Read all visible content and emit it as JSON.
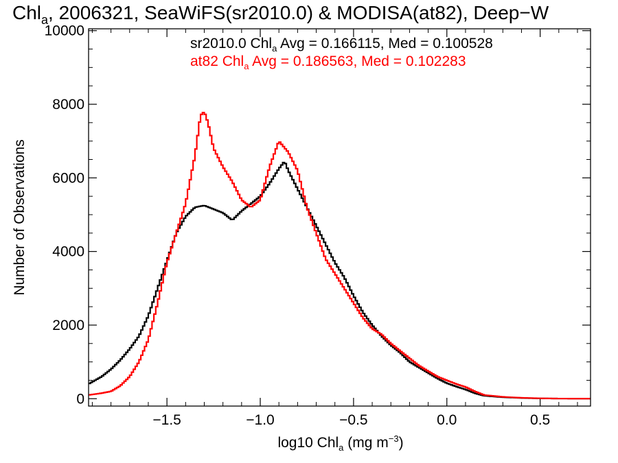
{
  "chart_data": {
    "type": "line",
    "step": true,
    "title": {
      "prefix": "Chl",
      "sub": "a",
      "rest": ", 2006321, SeaWiFS(sr2010.0) & MODISA(at82), Deep−W"
    },
    "xlabel": {
      "prefix": "log10 Chl",
      "sub": "a",
      "middle": " (mg m",
      "sup": "−3",
      "suffix": ")"
    },
    "ylabel": "Number of Observations",
    "xlim": [
      -1.92,
      0.77
    ],
    "ylim": [
      -200,
      10050
    ],
    "x_ticks": [
      -1.5,
      -1.0,
      -0.5,
      0.0,
      0.5
    ],
    "x_tick_labels": [
      "−1.5",
      "−1.0",
      "−0.5",
      "0.0",
      "0.5"
    ],
    "y_ticks": [
      0,
      2000,
      4000,
      6000,
      8000,
      10000
    ],
    "y_tick_labels": [
      "0",
      "2000",
      "4000",
      "6000",
      "8000",
      "10000"
    ],
    "annotations": [
      {
        "prefix": "sr2010.0 Chl",
        "sub": "a",
        "suffix": " Avg = 0.166115, Med = 0.100528",
        "color": "#000000"
      },
      {
        "prefix": "at82 Chl",
        "sub": "a",
        "suffix": " Avg = 0.186563, Med = 0.102283",
        "color": "#ff0000"
      }
    ],
    "series": [
      {
        "color": "#000000",
        "x": [
          -1.92,
          -1.85,
          -1.8,
          -1.75,
          -1.7,
          -1.65,
          -1.6,
          -1.55,
          -1.5,
          -1.45,
          -1.4,
          -1.35,
          -1.3,
          -1.25,
          -1.2,
          -1.15,
          -1.1,
          -1.05,
          -1.0,
          -0.95,
          -0.9,
          -0.87,
          -0.85,
          -0.8,
          -0.75,
          -0.7,
          -0.65,
          -0.6,
          -0.55,
          -0.5,
          -0.45,
          -0.4,
          -0.35,
          -0.3,
          -0.25,
          -0.2,
          -0.15,
          -0.1,
          -0.05,
          0.0,
          0.05,
          0.1,
          0.15,
          0.2,
          0.3,
          0.4,
          0.5,
          0.6,
          0.77
        ],
        "y": [
          400,
          600,
          800,
          1050,
          1350,
          1700,
          2250,
          3000,
          3750,
          4500,
          4950,
          5200,
          5250,
          5150,
          5050,
          4850,
          5100,
          5300,
          5500,
          5850,
          6250,
          6450,
          6200,
          5700,
          5200,
          4700,
          4200,
          3700,
          3300,
          2800,
          2350,
          2000,
          1700,
          1450,
          1250,
          1000,
          850,
          700,
          550,
          420,
          330,
          250,
          150,
          80,
          40,
          20,
          8,
          4,
          2
        ]
      },
      {
        "color": "#ff0000",
        "x": [
          -1.92,
          -1.85,
          -1.8,
          -1.75,
          -1.7,
          -1.65,
          -1.6,
          -1.55,
          -1.5,
          -1.45,
          -1.4,
          -1.35,
          -1.32,
          -1.3,
          -1.28,
          -1.25,
          -1.2,
          -1.15,
          -1.1,
          -1.05,
          -1.0,
          -0.95,
          -0.9,
          -0.85,
          -0.8,
          -0.75,
          -0.7,
          -0.65,
          -0.6,
          -0.55,
          -0.5,
          -0.45,
          -0.4,
          -0.35,
          -0.3,
          -0.25,
          -0.2,
          -0.15,
          -0.1,
          -0.05,
          0.0,
          0.05,
          0.1,
          0.15,
          0.2,
          0.3,
          0.4,
          0.5,
          0.6,
          0.77
        ],
        "y": [
          100,
          150,
          200,
          350,
          600,
          1000,
          1600,
          2600,
          3700,
          4500,
          5300,
          6600,
          7700,
          7800,
          7500,
          6800,
          6300,
          5900,
          5400,
          5200,
          5400,
          6300,
          7000,
          6700,
          6200,
          5200,
          4500,
          3800,
          3400,
          3000,
          2600,
          2200,
          1900,
          1750,
          1500,
          1300,
          1100,
          900,
          750,
          600,
          500,
          400,
          320,
          200,
          100,
          50,
          25,
          10,
          4,
          2
        ]
      }
    ]
  }
}
